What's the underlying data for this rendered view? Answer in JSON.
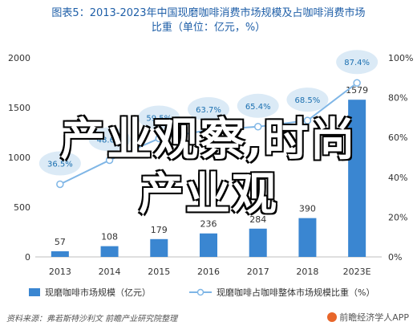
{
  "header": {
    "title_line1": "图表5：2013-2023年中国现磨咖啡消费市场规模及占咖啡消费市场",
    "title_line2": "比重（单位：亿元，%）"
  },
  "chart_data": {
    "type": "bar",
    "categories": [
      "2013",
      "2014",
      "2015",
      "2016",
      "2017",
      "2018",
      "2023E"
    ],
    "series": [
      {
        "name": "现磨咖啡市场规模（亿元）",
        "type": "bar",
        "axis": "left",
        "values": [
          57,
          108,
          179,
          236,
          284,
          390,
          1579
        ],
        "labels": [
          "57",
          "108",
          "179",
          "236",
          "284",
          "390",
          "1579"
        ]
      },
      {
        "name": "现磨咖啡占咖啡整体市场规模比重（%）",
        "type": "line",
        "axis": "right",
        "values": [
          36.5,
          48.6,
          59.5,
          63.7,
          65.4,
          68.5,
          87.4
        ],
        "labels": [
          "36.5%",
          "48.6%",
          "59.5%",
          "63.7%",
          "65.4%",
          "68.5%",
          "87.4%"
        ]
      }
    ],
    "y_left": {
      "ylim": [
        0,
        2000
      ],
      "ticks": [
        "0",
        "500",
        "1000",
        "1500",
        "2000"
      ]
    },
    "y_right": {
      "ylim": [
        0,
        100
      ],
      "ticks": [
        "0%",
        "20%",
        "40%",
        "60%",
        "80%",
        "100%"
      ]
    },
    "legend_position": "bottom",
    "grid": false,
    "colors": {
      "bar": "#3a86d1",
      "line": "#7fb6e6",
      "bubble": "#dbeaf6"
    }
  },
  "watermark": {
    "line1": "产业观察,时尚",
    "line2": "产业观"
  },
  "footer": {
    "source": "资料来源：弗若斯特沙利文 前瞻产业研究院整理",
    "brand": "前瞻经济学人APP"
  }
}
